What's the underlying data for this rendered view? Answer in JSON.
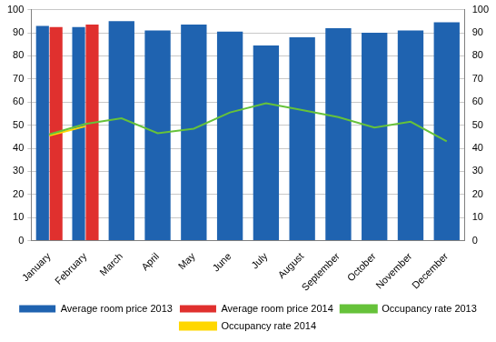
{
  "chart_data": {
    "type": "bar",
    "categories": [
      "January",
      "February",
      "March",
      "April",
      "May",
      "June",
      "July",
      "August",
      "September",
      "October",
      "November",
      "December"
    ],
    "series": [
      {
        "name": "Average room price 2013",
        "type": "bar",
        "color": "#1f63b0",
        "values": [
          93,
          92.5,
          95,
          91,
          93.5,
          90.5,
          84.5,
          88,
          92,
          90,
          91,
          94.5
        ]
      },
      {
        "name": "Average room price 2014",
        "type": "bar",
        "color": "#e0302e",
        "values": [
          92.5,
          93.5,
          null,
          null,
          null,
          null,
          null,
          null,
          null,
          null,
          null,
          null
        ]
      },
      {
        "name": "Occupancy rate 2013",
        "type": "line",
        "axis": "y2",
        "color": "#66c23a",
        "values": [
          46,
          50.5,
          53,
          46.5,
          48.5,
          55.5,
          59.5,
          56.5,
          53.5,
          49,
          51.5,
          43
        ]
      },
      {
        "name": "Occupancy rate 2014",
        "type": "line",
        "axis": "y2",
        "color": "#ffd700",
        "values": [
          45.5,
          49.5,
          null,
          null,
          null,
          null,
          null,
          null,
          null,
          null,
          null,
          null
        ]
      }
    ],
    "ylim": [
      0,
      100
    ],
    "yticks": [
      0,
      10,
      20,
      30,
      40,
      50,
      60,
      70,
      80,
      90,
      100
    ],
    "y2lim": [
      0,
      100
    ],
    "y2ticks": [
      0,
      10,
      20,
      30,
      40,
      50,
      60,
      70,
      80,
      90,
      100
    ],
    "grid": true,
    "legend": "bottom"
  }
}
